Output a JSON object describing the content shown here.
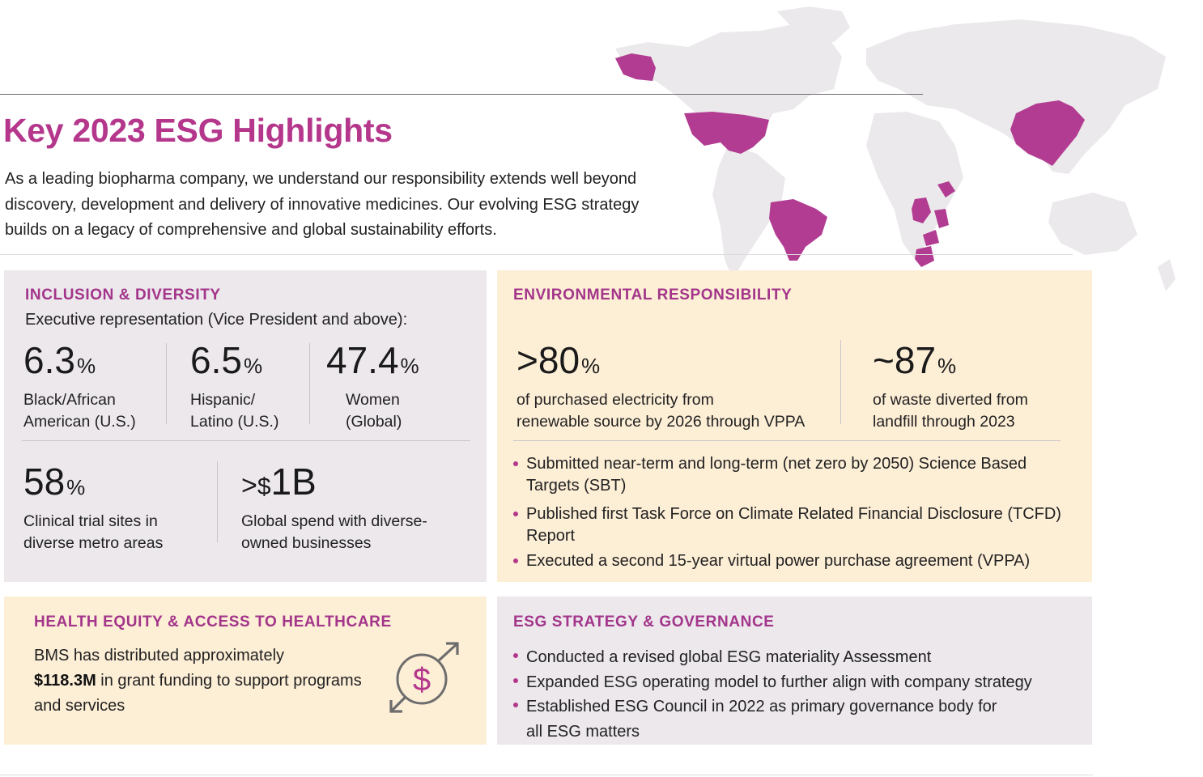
{
  "title": "Key 2023 ESG Highlights",
  "intro": "As a leading biopharma company, we understand our responsibility extends well beyond discovery, development and delivery of innovative medicines. Our evolving ESG strategy builds on a legacy of comprehensive and global sustainability efforts.",
  "colors": {
    "accent": "#b4378c",
    "heading": "#a3358a",
    "grey_panel": "#ece8ec",
    "cream_panel": "#fdeed6",
    "map_land": "#ebe9eb",
    "map_highlight": "#b23c92"
  },
  "map": {
    "icon": "world-map-icon",
    "highlighted_regions": [
      "Alaska",
      "United States",
      "Brazil",
      "China",
      "Ethiopia",
      "Congo",
      "Uganda/Kenya",
      "Zimbabwe/Mozambique",
      "South Africa"
    ]
  },
  "inclusion": {
    "heading": "INCLUSION & DIVERSITY",
    "subheading": "Executive representation (Vice President and above):",
    "stats_top": [
      {
        "value": "6.3",
        "unit": "%",
        "label_line1": "Black/African",
        "label_line2": "American (U.S.)"
      },
      {
        "value": "6.5",
        "unit": "%",
        "label_line1": "Hispanic/",
        "label_line2": "Latino (U.S.)"
      },
      {
        "value": "47.4",
        "unit": "%",
        "label_line1": "Women",
        "label_line2": "(Global)"
      }
    ],
    "stats_bottom": [
      {
        "value": "58",
        "unit": "%",
        "label_line1": "Clinical trial sites in",
        "label_line2": "diverse metro areas"
      },
      {
        "prefix": ">",
        "currency": "$",
        "value": "1B",
        "label_line1": "Global spend with diverse-",
        "label_line2": "owned businesses"
      }
    ]
  },
  "environment": {
    "heading": "ENVIRONMENTAL RESPONSIBILITY",
    "stats": [
      {
        "prefix": ">",
        "value": "80",
        "unit": "%",
        "label_line1": "of purchased electricity from",
        "label_line2": "renewable source by 2026 through VPPA"
      },
      {
        "prefix": "~",
        "value": "87",
        "unit": "%",
        "label_line1": "of waste diverted from",
        "label_line2": "landfill through 2023"
      }
    ],
    "bullets": [
      {
        "line1": "Submitted near-term and long-term (net zero by 2050) Science Based",
        "line2": "Targets (SBT)"
      },
      {
        "line1": "Published first Task Force on Climate Related Financial Disclosure (TCFD)",
        "line2": "Report"
      },
      {
        "line1": "Executed a second 15-year virtual power purchase agreement (VPPA)",
        "line2": ""
      }
    ]
  },
  "health": {
    "heading": "HEALTH EQUITY & ACCESS TO HEALTHCARE",
    "text_before": "BMS has distributed approximately",
    "amount": "$118.3M",
    "text_after": " in grant funding to support programs and services",
    "icon": "dollar-exchange-icon"
  },
  "esg": {
    "heading": "ESG STRATEGY & GOVERNANCE",
    "bullets": [
      {
        "line1": "Conducted a revised global ESG materiality Assessment",
        "line2": ""
      },
      {
        "line1": "Expanded ESG operating model to further align with company strategy",
        "line2": ""
      },
      {
        "line1": "Established ESG Council in 2022 as primary governance body for",
        "line2": "all ESG matters"
      }
    ]
  }
}
